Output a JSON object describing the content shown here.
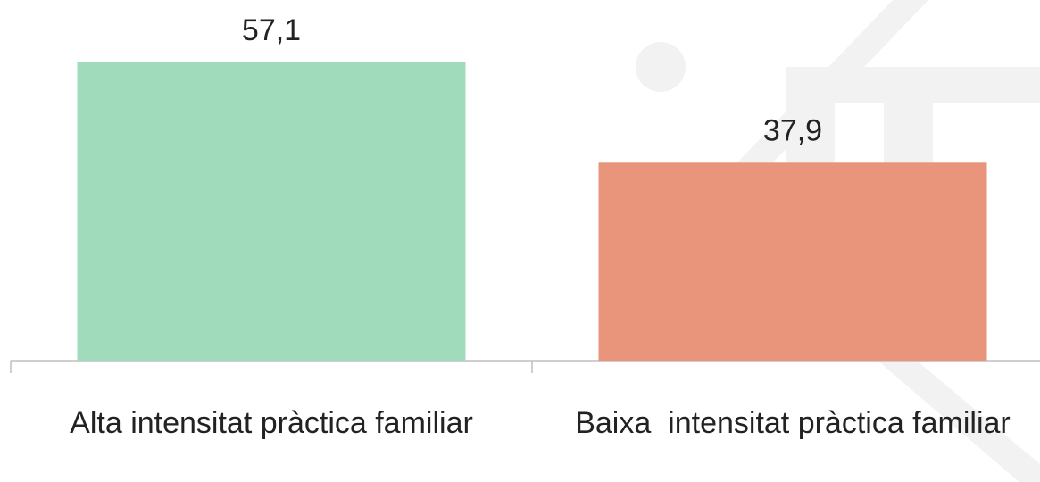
{
  "chart_data": {
    "type": "bar",
    "categories": [
      "Alta intensitat pràctica familiar",
      "Baixa  intensitat pràctica familiar"
    ],
    "values": [
      57.1,
      37.9
    ],
    "value_labels": [
      "57,1",
      "37,9"
    ],
    "colors": [
      "#a0dbbb",
      "#e8957b"
    ]
  }
}
